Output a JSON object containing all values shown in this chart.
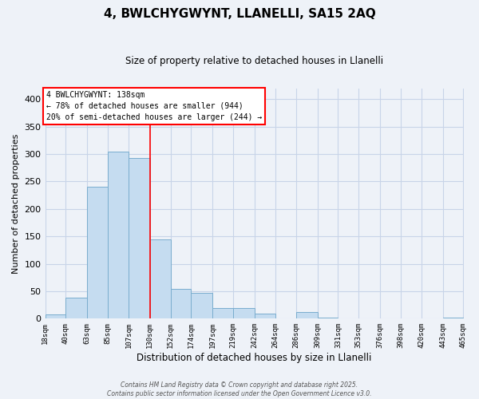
{
  "title": "4, BWLCHYGWYNT, LLANELLI, SA15 2AQ",
  "subtitle": "Size of property relative to detached houses in Llanelli",
  "xlabel": "Distribution of detached houses by size in Llanelli",
  "ylabel": "Number of detached properties",
  "bar_color": "#c5dcf0",
  "bar_edge_color": "#7aadce",
  "vline_x": 130,
  "vline_color": "red",
  "bin_edges": [
    18,
    40,
    63,
    85,
    107,
    130,
    152,
    174,
    197,
    219,
    242,
    264,
    286,
    309,
    331,
    353,
    376,
    398,
    420,
    443,
    465
  ],
  "bin_labels": [
    "18sqm",
    "40sqm",
    "63sqm",
    "85sqm",
    "107sqm",
    "130sqm",
    "152sqm",
    "174sqm",
    "197sqm",
    "219sqm",
    "242sqm",
    "264sqm",
    "286sqm",
    "309sqm",
    "331sqm",
    "353sqm",
    "376sqm",
    "398sqm",
    "420sqm",
    "443sqm",
    "465sqm"
  ],
  "counts": [
    8,
    38,
    240,
    305,
    293,
    145,
    55,
    47,
    20,
    20,
    9,
    0,
    12,
    2,
    1,
    1,
    1,
    1,
    0,
    2
  ],
  "ylim": [
    0,
    420
  ],
  "yticks": [
    0,
    50,
    100,
    150,
    200,
    250,
    300,
    350,
    400
  ],
  "annotation_title": "4 BWLCHYGWYNT: 138sqm",
  "annotation_line1": "← 78% of detached houses are smaller (944)",
  "annotation_line2": "20% of semi-detached houses are larger (244) →",
  "annotation_box_color": "white",
  "annotation_box_edge": "red",
  "footer_line1": "Contains HM Land Registry data © Crown copyright and database right 2025.",
  "footer_line2": "Contains public sector information licensed under the Open Government Licence v3.0.",
  "bg_color": "#eef2f8",
  "grid_color": "#c8d4e8",
  "plot_bg": "#eef2f8"
}
